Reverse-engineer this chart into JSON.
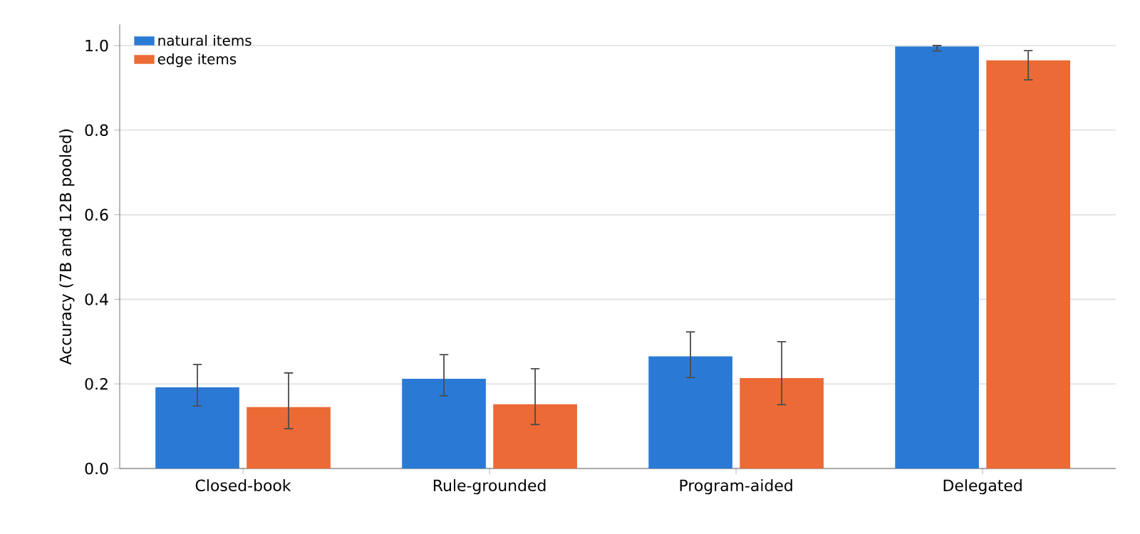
{
  "chart_data": {
    "type": "bar",
    "ylabel": "Accuracy (7B and 12B pooled)",
    "categories": [
      "Closed-book",
      "Rule-grounded",
      "Program-aided",
      "Delegated"
    ],
    "series": [
      {
        "name": "natural items",
        "color": "#2a7ad5",
        "values": [
          0.192,
          0.212,
          0.265,
          0.998
        ],
        "errors": [
          [
            0.148,
            0.246
          ],
          [
            0.172,
            0.269
          ],
          [
            0.215,
            0.323
          ],
          [
            0.987,
            1.0
          ]
        ]
      },
      {
        "name": "edge items",
        "color": "#eb6a35",
        "values": [
          0.145,
          0.152,
          0.214,
          0.965
        ],
        "errors": [
          [
            0.094,
            0.226
          ],
          [
            0.104,
            0.236
          ],
          [
            0.151,
            0.3
          ],
          [
            0.919,
            0.988
          ]
        ]
      }
    ],
    "ylim": [
      0,
      1.05
    ],
    "yticks": [
      {
        "value": 0,
        "label": "0.0"
      },
      {
        "value": 0.2,
        "label": "0.2"
      },
      {
        "value": 0.4,
        "label": "0.4"
      },
      {
        "value": 0.6,
        "label": "0.6"
      },
      {
        "value": 0.8,
        "label": "0.8"
      },
      {
        "value": 1.0,
        "label": "1.0"
      }
    ],
    "grid": "y",
    "legend": "top left"
  }
}
